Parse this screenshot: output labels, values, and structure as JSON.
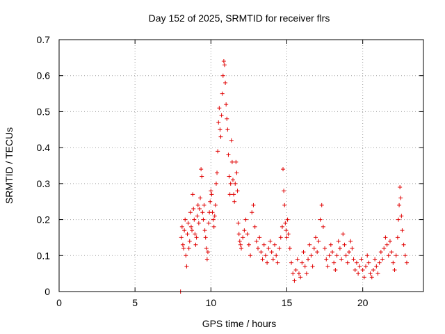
{
  "chart_data": {
    "type": "scatter",
    "title": "Day 152 of 2025, SRMTID for receiver flrs",
    "xlabel": "GPS time / hours",
    "ylabel": "SRMTID / TECUs",
    "xlim": [
      0,
      24
    ],
    "ylim": [
      0,
      0.7
    ],
    "xticks": [
      0,
      5,
      10,
      15,
      20
    ],
    "yticks": [
      0,
      0.1,
      0.2,
      0.3,
      0.4,
      0.5,
      0.6,
      0.7
    ],
    "xtick_labels": [
      "0",
      "5",
      "10",
      "15",
      "20"
    ],
    "ytick_labels": [
      "0",
      "0.1",
      "0.2",
      "0.3",
      "0.4",
      "0.5",
      "0.6",
      "0.7"
    ],
    "grid": true,
    "marker": "+",
    "color": "#e00000",
    "series": [
      {
        "name": "flrs",
        "points": [
          [
            8.0,
            0.0
          ],
          [
            8.05,
            0.15
          ],
          [
            8.1,
            0.18
          ],
          [
            8.15,
            0.13
          ],
          [
            8.2,
            0.12
          ],
          [
            8.25,
            0.17
          ],
          [
            8.3,
            0.2
          ],
          [
            8.35,
            0.1
          ],
          [
            8.4,
            0.07
          ],
          [
            8.45,
            0.16
          ],
          [
            8.5,
            0.19
          ],
          [
            8.55,
            0.12
          ],
          [
            8.6,
            0.14
          ],
          [
            8.65,
            0.22
          ],
          [
            8.7,
            0.18
          ],
          [
            8.75,
            0.17
          ],
          [
            8.8,
            0.27
          ],
          [
            8.85,
            0.23
          ],
          [
            8.9,
            0.2
          ],
          [
            8.95,
            0.16
          ],
          [
            9.0,
            0.13
          ],
          [
            9.05,
            0.15
          ],
          [
            9.1,
            0.21
          ],
          [
            9.15,
            0.24
          ],
          [
            9.2,
            0.19
          ],
          [
            9.25,
            0.23
          ],
          [
            9.3,
            0.26
          ],
          [
            9.35,
            0.34
          ],
          [
            9.4,
            0.32
          ],
          [
            9.45,
            0.22
          ],
          [
            9.5,
            0.2
          ],
          [
            9.55,
            0.24
          ],
          [
            9.6,
            0.17
          ],
          [
            9.65,
            0.15
          ],
          [
            9.7,
            0.12
          ],
          [
            9.75,
            0.09
          ],
          [
            9.8,
            0.11
          ],
          [
            9.85,
            0.19
          ],
          [
            9.9,
            0.22
          ],
          [
            9.95,
            0.25
          ],
          [
            10.0,
            0.28
          ],
          [
            10.05,
            0.27
          ],
          [
            10.1,
            0.22
          ],
          [
            10.15,
            0.2
          ],
          [
            10.2,
            0.18
          ],
          [
            10.25,
            0.21
          ],
          [
            10.3,
            0.24
          ],
          [
            10.35,
            0.3
          ],
          [
            10.4,
            0.33
          ],
          [
            10.45,
            0.39
          ],
          [
            10.5,
            0.47
          ],
          [
            10.55,
            0.51
          ],
          [
            10.6,
            0.45
          ],
          [
            10.65,
            0.43
          ],
          [
            10.7,
            0.49
          ],
          [
            10.75,
            0.55
          ],
          [
            10.8,
            0.6
          ],
          [
            10.85,
            0.64
          ],
          [
            10.9,
            0.63
          ],
          [
            10.95,
            0.58
          ],
          [
            11.0,
            0.52
          ],
          [
            11.05,
            0.48
          ],
          [
            11.1,
            0.45
          ],
          [
            11.15,
            0.38
          ],
          [
            11.2,
            0.32
          ],
          [
            11.25,
            0.27
          ],
          [
            11.3,
            0.3
          ],
          [
            11.35,
            0.42
          ],
          [
            11.4,
            0.36
          ],
          [
            11.45,
            0.31
          ],
          [
            11.5,
            0.27
          ],
          [
            11.55,
            0.25
          ],
          [
            11.6,
            0.3
          ],
          [
            11.65,
            0.36
          ],
          [
            11.7,
            0.33
          ],
          [
            11.75,
            0.28
          ],
          [
            11.8,
            0.19
          ],
          [
            11.85,
            0.16
          ],
          [
            11.9,
            0.14
          ],
          [
            11.95,
            0.13
          ],
          [
            12.0,
            0.12
          ],
          [
            12.1,
            0.15
          ],
          [
            12.2,
            0.17
          ],
          [
            12.3,
            0.2
          ],
          [
            12.4,
            0.16
          ],
          [
            12.5,
            0.13
          ],
          [
            12.6,
            0.1
          ],
          [
            12.7,
            0.22
          ],
          [
            12.8,
            0.24
          ],
          [
            12.9,
            0.18
          ],
          [
            13.0,
            0.14
          ],
          [
            13.1,
            0.12
          ],
          [
            13.2,
            0.15
          ],
          [
            13.3,
            0.11
          ],
          [
            13.4,
            0.09
          ],
          [
            13.5,
            0.13
          ],
          [
            13.6,
            0.1
          ],
          [
            13.7,
            0.08
          ],
          [
            13.8,
            0.12
          ],
          [
            13.9,
            0.14
          ],
          [
            14.0,
            0.11
          ],
          [
            14.1,
            0.09
          ],
          [
            14.2,
            0.13
          ],
          [
            14.3,
            0.1
          ],
          [
            14.4,
            0.08
          ],
          [
            14.5,
            0.12
          ],
          [
            14.6,
            0.15
          ],
          [
            14.7,
            0.18
          ],
          [
            14.75,
            0.34
          ],
          [
            14.8,
            0.28
          ],
          [
            14.85,
            0.24
          ],
          [
            14.9,
            0.19
          ],
          [
            14.95,
            0.17
          ],
          [
            15.0,
            0.15
          ],
          [
            15.05,
            0.2
          ],
          [
            15.1,
            0.16
          ],
          [
            15.2,
            0.12
          ],
          [
            15.3,
            0.08
          ],
          [
            15.4,
            0.05
          ],
          [
            15.5,
            0.03
          ],
          [
            15.6,
            0.06
          ],
          [
            15.7,
            0.09
          ],
          [
            15.8,
            0.05
          ],
          [
            15.9,
            0.04
          ],
          [
            16.0,
            0.08
          ],
          [
            16.1,
            0.11
          ],
          [
            16.2,
            0.07
          ],
          [
            16.3,
            0.05
          ],
          [
            16.4,
            0.09
          ],
          [
            16.5,
            0.13
          ],
          [
            16.6,
            0.1
          ],
          [
            16.7,
            0.07
          ],
          [
            16.8,
            0.12
          ],
          [
            16.9,
            0.15
          ],
          [
            17.0,
            0.11
          ],
          [
            17.1,
            0.14
          ],
          [
            17.2,
            0.2
          ],
          [
            17.3,
            0.24
          ],
          [
            17.4,
            0.18
          ],
          [
            17.5,
            0.12
          ],
          [
            17.6,
            0.09
          ],
          [
            17.7,
            0.07
          ],
          [
            17.8,
            0.1
          ],
          [
            17.9,
            0.13
          ],
          [
            18.0,
            0.11
          ],
          [
            18.1,
            0.08
          ],
          [
            18.2,
            0.06
          ],
          [
            18.3,
            0.1
          ],
          [
            18.4,
            0.14
          ],
          [
            18.5,
            0.12
          ],
          [
            18.6,
            0.09
          ],
          [
            18.7,
            0.16
          ],
          [
            18.8,
            0.13
          ],
          [
            18.9,
            0.1
          ],
          [
            19.0,
            0.08
          ],
          [
            19.1,
            0.11
          ],
          [
            19.2,
            0.14
          ],
          [
            19.3,
            0.12
          ],
          [
            19.4,
            0.09
          ],
          [
            19.5,
            0.06
          ],
          [
            19.6,
            0.08
          ],
          [
            19.7,
            0.05
          ],
          [
            19.8,
            0.07
          ],
          [
            19.9,
            0.09
          ],
          [
            20.0,
            0.06
          ],
          [
            20.1,
            0.04
          ],
          [
            20.2,
            0.07
          ],
          [
            20.3,
            0.1
          ],
          [
            20.4,
            0.08
          ],
          [
            20.5,
            0.05
          ],
          [
            20.6,
            0.04
          ],
          [
            20.7,
            0.06
          ],
          [
            20.8,
            0.09
          ],
          [
            20.9,
            0.07
          ],
          [
            21.0,
            0.05
          ],
          [
            21.1,
            0.08
          ],
          [
            21.2,
            0.11
          ],
          [
            21.3,
            0.09
          ],
          [
            21.4,
            0.12
          ],
          [
            21.5,
            0.15
          ],
          [
            21.6,
            0.13
          ],
          [
            21.7,
            0.1
          ],
          [
            21.8,
            0.14
          ],
          [
            21.9,
            0.11
          ],
          [
            22.0,
            0.08
          ],
          [
            22.1,
            0.06
          ],
          [
            22.2,
            0.1
          ],
          [
            22.3,
            0.15
          ],
          [
            22.35,
            0.2
          ],
          [
            22.4,
            0.24
          ],
          [
            22.45,
            0.29
          ],
          [
            22.5,
            0.26
          ],
          [
            22.55,
            0.21
          ],
          [
            22.6,
            0.17
          ],
          [
            22.7,
            0.13
          ],
          [
            22.8,
            0.1
          ],
          [
            22.9,
            0.08
          ]
        ]
      }
    ]
  }
}
